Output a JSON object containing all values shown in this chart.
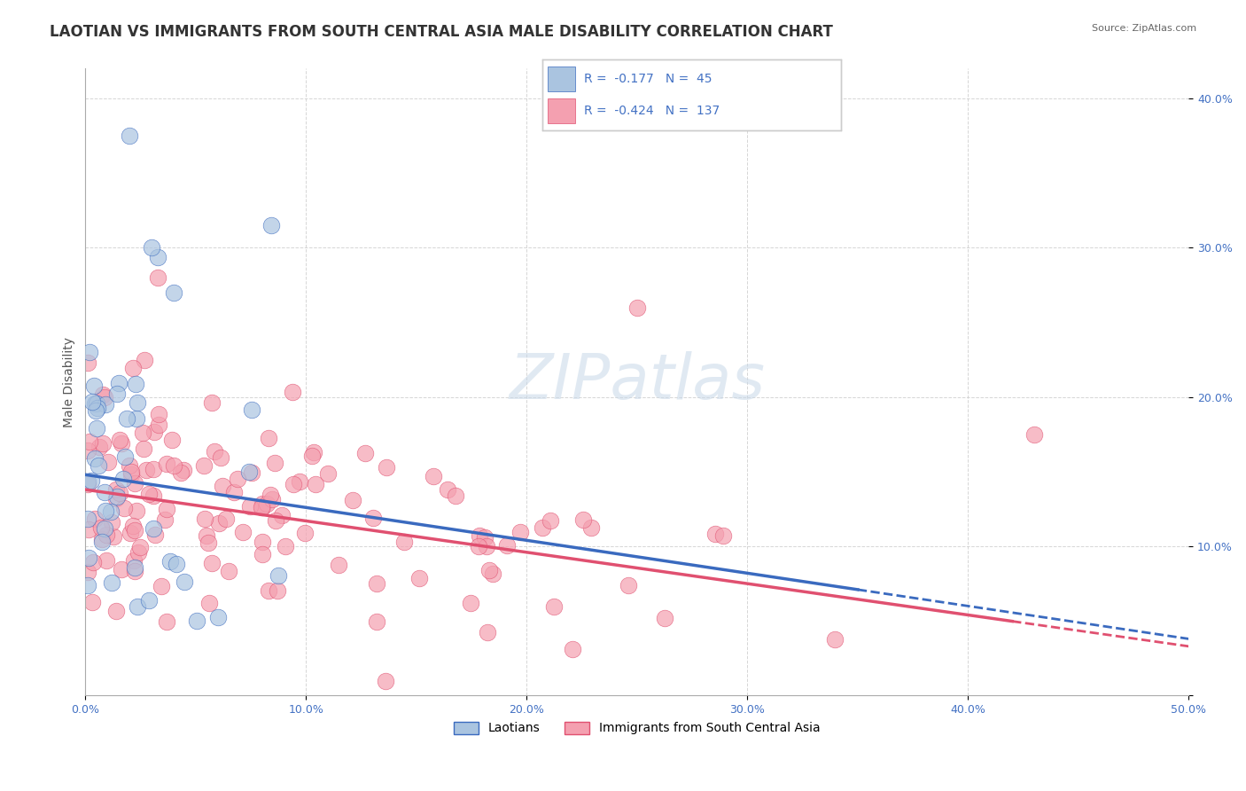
{
  "title": "LAOTIAN VS IMMIGRANTS FROM SOUTH CENTRAL ASIA MALE DISABILITY CORRELATION CHART",
  "source": "Source: ZipAtlas.com",
  "xlabel": "",
  "ylabel": "Male Disability",
  "xlim": [
    0.0,
    0.5
  ],
  "ylim": [
    0.0,
    0.42
  ],
  "xticks": [
    0.0,
    0.1,
    0.2,
    0.3,
    0.4,
    0.5
  ],
  "yticks": [
    0.0,
    0.1,
    0.2,
    0.3,
    0.4
  ],
  "ytick_labels": [
    "",
    "10.0%",
    "20.0%",
    "30.0%",
    "40.0%"
  ],
  "xtick_labels": [
    "0.0%",
    "10.0%",
    "20.0%",
    "30.0%",
    "40.0%",
    "50.0%"
  ],
  "legend_entries": [
    {
      "label": "Laotians",
      "R": "-0.177",
      "N": "45",
      "color": "#aac4e0"
    },
    {
      "label": "Immigrants from South Central Asia",
      "R": "-0.424",
      "N": "137",
      "color": "#f4a0b0"
    }
  ],
  "watermark": "ZIPatlas",
  "background_color": "#ffffff",
  "grid_color": "#cccccc",
  "blue_color": "#5b9bd5",
  "pink_color": "#f4a0b0",
  "blue_scatter_color": "#aac4e0",
  "pink_scatter_color": "#f4a0b0",
  "blue_line_color": "#3a6abf",
  "pink_line_color": "#e05070",
  "blue_r": -0.177,
  "blue_n": 45,
  "pink_r": -0.424,
  "pink_n": 137,
  "blue_intercept": 0.148,
  "blue_slope": -0.22,
  "pink_intercept": 0.138,
  "pink_slope": -0.21,
  "title_fontsize": 12,
  "axis_label_fontsize": 10,
  "tick_fontsize": 9,
  "legend_fontsize": 11
}
